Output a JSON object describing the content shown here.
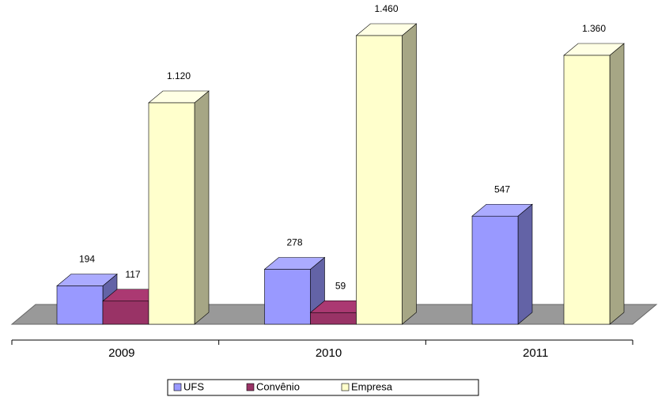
{
  "chart_data": {
    "type": "bar3d",
    "categories": [
      "2009",
      "2010",
      "2011"
    ],
    "series": [
      {
        "name": "UFS",
        "color": "#9999ff",
        "values": [
          194,
          278,
          547
        ]
      },
      {
        "name": "Convênio",
        "color": "#993366",
        "values": [
          117,
          59,
          null
        ]
      },
      {
        "name": "Empresa",
        "color": "#ffffcc",
        "values": [
          1120,
          1460,
          1360
        ],
        "value_labels": [
          "1.120",
          "1.460",
          "1.360"
        ]
      }
    ],
    "legend": "bottom"
  }
}
